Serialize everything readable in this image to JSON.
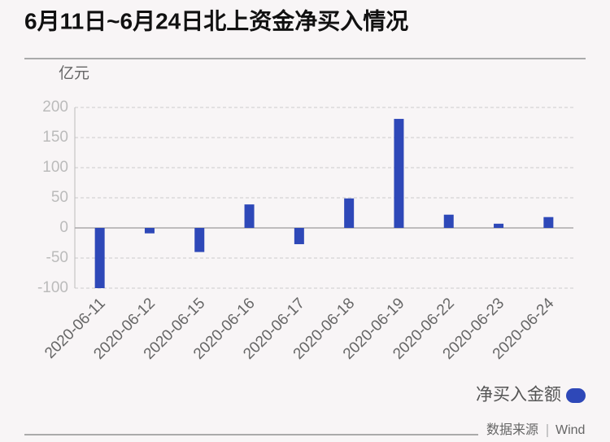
{
  "chart_data": {
    "type": "bar",
    "title": "6月11日~6月24日北上资金净买入情况",
    "y_label": "亿元",
    "categories": [
      "2020-06-11",
      "2020-06-12",
      "2020-06-15",
      "2020-06-16",
      "2020-06-17",
      "2020-06-18",
      "2020-06-19",
      "2020-06-22",
      "2020-06-23",
      "2020-06-24"
    ],
    "series": [
      {
        "name": "净买入金额",
        "color": "#2e48b8",
        "values": [
          -100,
          -9,
          -40,
          39,
          -27,
          49,
          181,
          22,
          7,
          18
        ]
      }
    ],
    "ylim": [
      -100,
      200
    ],
    "yticks": [
      -100,
      -50,
      0,
      50,
      100,
      150,
      200
    ],
    "grid": true,
    "legend": "bottom-right"
  },
  "footer": {
    "source_label": "数据来源",
    "source": "Wind"
  }
}
